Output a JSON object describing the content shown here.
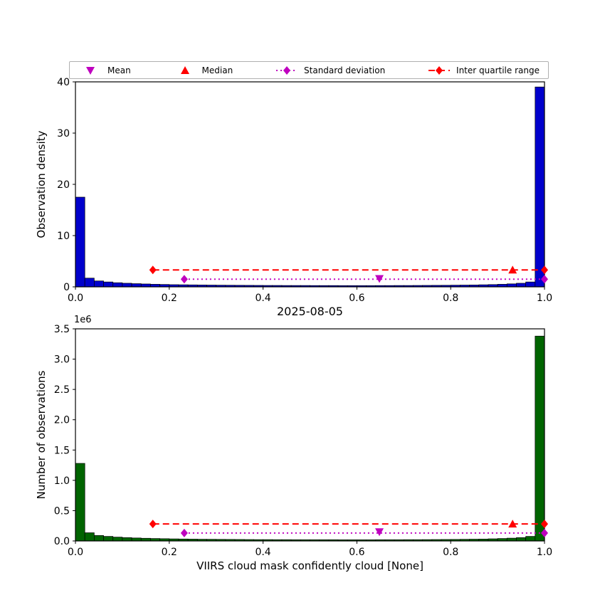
{
  "figure": {
    "title": "2025-08-05",
    "xlabel": "VIIRS cloud mask confidently cloud [None]",
    "background": "#ffffff"
  },
  "legend": {
    "items": [
      {
        "label": "Mean",
        "marker": "triangle-down",
        "color": "#bf00bf",
        "linestyle": "none"
      },
      {
        "label": "Median",
        "marker": "triangle-up",
        "color": "#ff0000",
        "linestyle": "none"
      },
      {
        "label": "Standard deviation",
        "marker": "diamond",
        "color": "#bf00bf",
        "linestyle": "dotted"
      },
      {
        "label": "Inter quartile range",
        "marker": "diamond",
        "color": "#ff0000",
        "linestyle": "dashed"
      }
    ]
  },
  "chart_data": [
    {
      "type": "bar",
      "name": "observation-density-histogram",
      "ylabel": "Observation density",
      "bar_color": "#0000cc",
      "bar_edge_color": "#000000",
      "xlim": [
        0.0,
        1.0
      ],
      "ylim": [
        0,
        40
      ],
      "grid": false,
      "xticks": {
        "values": [
          0.0,
          0.2,
          0.4,
          0.6,
          0.8,
          1.0
        ],
        "labels": [
          "0.0",
          "0.2",
          "0.4",
          "0.6",
          "0.8",
          "1.0"
        ]
      },
      "yticks": {
        "values": [
          0,
          10,
          20,
          30,
          40
        ],
        "labels": [
          "0",
          "10",
          "20",
          "30",
          "40"
        ]
      },
      "bins": {
        "start": 0.0,
        "width": 0.02
      },
      "values": [
        17.5,
        1.7,
        1.15,
        0.95,
        0.8,
        0.7,
        0.62,
        0.56,
        0.5,
        0.46,
        0.42,
        0.4,
        0.38,
        0.36,
        0.34,
        0.32,
        0.31,
        0.3,
        0.29,
        0.28,
        0.27,
        0.27,
        0.26,
        0.26,
        0.26,
        0.25,
        0.25,
        0.25,
        0.24,
        0.24,
        0.24,
        0.24,
        0.25,
        0.25,
        0.26,
        0.26,
        0.27,
        0.28,
        0.29,
        0.3,
        0.32,
        0.34,
        0.36,
        0.4,
        0.44,
        0.5,
        0.58,
        0.7,
        0.95,
        39.0
      ],
      "stats": {
        "mean": {
          "x": 0.648,
          "y": 1.6
        },
        "median": {
          "x": 0.932,
          "y": 3.3
        },
        "std_span": {
          "x0": 0.232,
          "x1": 1.0,
          "y": 1.5
        },
        "iqr_span": {
          "x0": 0.165,
          "x1": 1.0,
          "y": 3.3
        }
      }
    },
    {
      "type": "bar",
      "name": "observation-count-histogram",
      "ylabel": "Number of observations",
      "y_offset_text": "1e6",
      "y_unit": "1e6 observations",
      "bar_color": "#006400",
      "bar_edge_color": "#000000",
      "xlim": [
        0.0,
        1.0
      ],
      "ylim": [
        0,
        3.5
      ],
      "grid": false,
      "xticks": {
        "values": [
          0.0,
          0.2,
          0.4,
          0.6,
          0.8,
          1.0
        ],
        "labels": [
          "0.0",
          "0.2",
          "0.4",
          "0.6",
          "0.8",
          "1.0"
        ]
      },
      "yticks": {
        "values": [
          0,
          0.5,
          1.0,
          1.5,
          2.0,
          2.5,
          3.0,
          3.5
        ],
        "labels": [
          "0.0",
          "0.5",
          "1.0",
          "1.5",
          "2.0",
          "2.5",
          "3.0",
          "3.5"
        ]
      },
      "bins": {
        "start": 0.0,
        "width": 0.02
      },
      "values": [
        1.28,
        0.135,
        0.09,
        0.075,
        0.063,
        0.055,
        0.049,
        0.044,
        0.04,
        0.037,
        0.034,
        0.032,
        0.03,
        0.028,
        0.027,
        0.026,
        0.025,
        0.024,
        0.023,
        0.022,
        0.022,
        0.021,
        0.021,
        0.02,
        0.02,
        0.02,
        0.02,
        0.02,
        0.019,
        0.019,
        0.019,
        0.019,
        0.02,
        0.02,
        0.02,
        0.021,
        0.021,
        0.022,
        0.023,
        0.024,
        0.025,
        0.027,
        0.029,
        0.031,
        0.035,
        0.04,
        0.046,
        0.055,
        0.075,
        3.38
      ],
      "stats": {
        "mean": {
          "x": 0.648,
          "y": 0.15
        },
        "median": {
          "x": 0.932,
          "y": 0.28
        },
        "std_span": {
          "x0": 0.232,
          "x1": 1.0,
          "y": 0.13
        },
        "iqr_span": {
          "x0": 0.165,
          "x1": 1.0,
          "y": 0.28
        }
      }
    }
  ]
}
